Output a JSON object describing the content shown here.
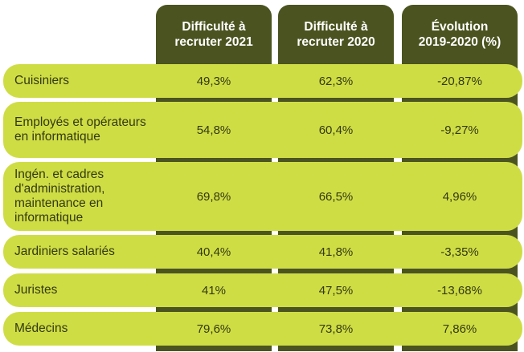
{
  "headers": {
    "col1": [
      "Difficulté à",
      "recruter 2021"
    ],
    "col2": [
      "Difficulté à",
      "recruter 2020"
    ],
    "col3": [
      "Évolution",
      "2019-2020 (%)"
    ]
  },
  "rows": [
    {
      "label": "Cuisiniers",
      "v2021": "49,3%",
      "v2020": "62,3%",
      "evol": "-20,87%"
    },
    {
      "label": "Employés et opérateurs en informatique",
      "v2021": "54,8%",
      "v2020": "60,4%",
      "evol": "-9,27%"
    },
    {
      "label": "Ingén. et cadres d'administration, maintenance en informatique",
      "v2021": "69,8%",
      "v2020": "66,5%",
      "evol": "4,96%"
    },
    {
      "label": "Jardiniers salariés",
      "v2021": "40,4%",
      "v2020": "41,8%",
      "evol": "-3,35%"
    },
    {
      "label": "Juristes",
      "v2021": "41%",
      "v2020": "47,5%",
      "evol": "-13,68%"
    },
    {
      "label": "Médecins",
      "v2021": "79,6%",
      "v2020": "73,8%",
      "evol": "7,86%"
    }
  ],
  "colors": {
    "header": "#4b5420",
    "row": "#cfdd45",
    "text": "#333a10"
  }
}
